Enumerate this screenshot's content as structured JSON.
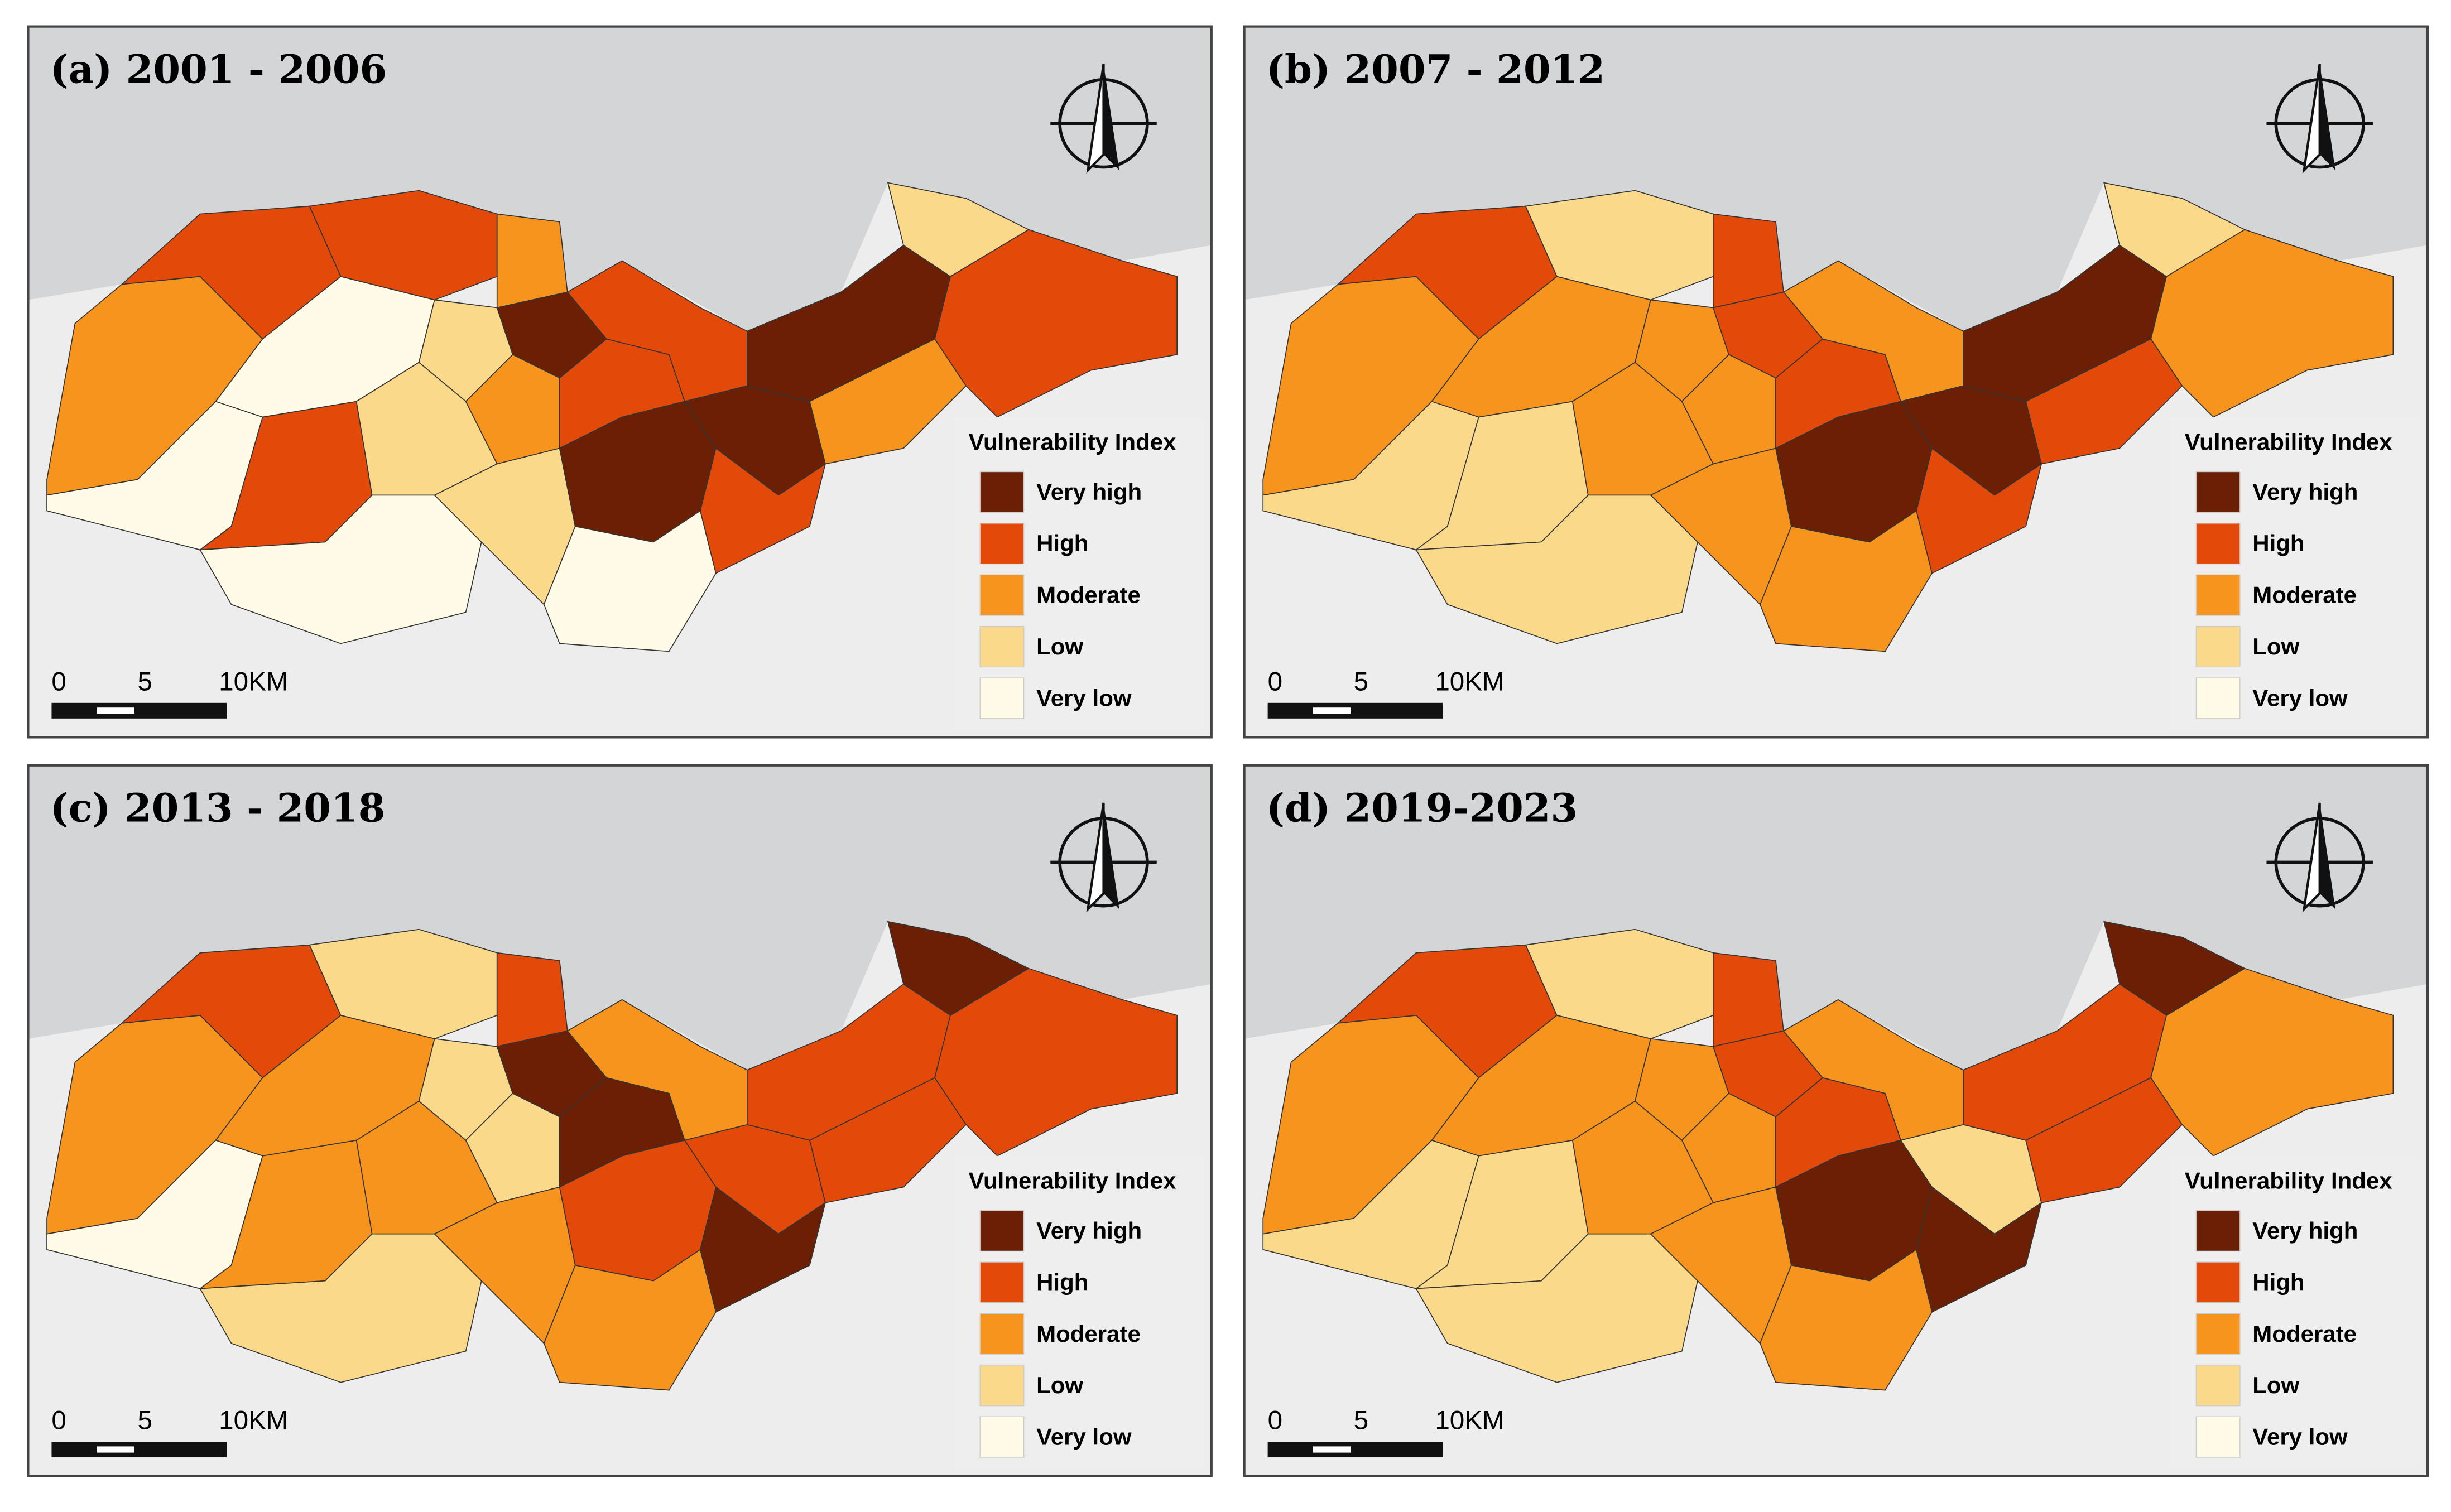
{
  "panels": [
    {
      "title": "(a) 2001 - 2006"
    },
    {
      "title": "(b) 2007 - 2012"
    },
    {
      "title": "(c) 2013 - 2018"
    },
    {
      "title": "(d) 2019-2023"
    }
  ],
  "legend": {
    "title": "Vulnerability Index",
    "items": [
      {
        "label": "Very high",
        "color": "#6b2005"
      },
      {
        "label": "High",
        "color": "#e34a0a"
      },
      {
        "label": "Moderate",
        "color": "#f6941d"
      },
      {
        "label": "Low",
        "color": "#fbd98a"
      },
      {
        "label": "Very low",
        "color": "#fffbe6"
      }
    ]
  },
  "scale": {
    "labels": [
      "0",
      "5",
      "10KM"
    ]
  }
}
